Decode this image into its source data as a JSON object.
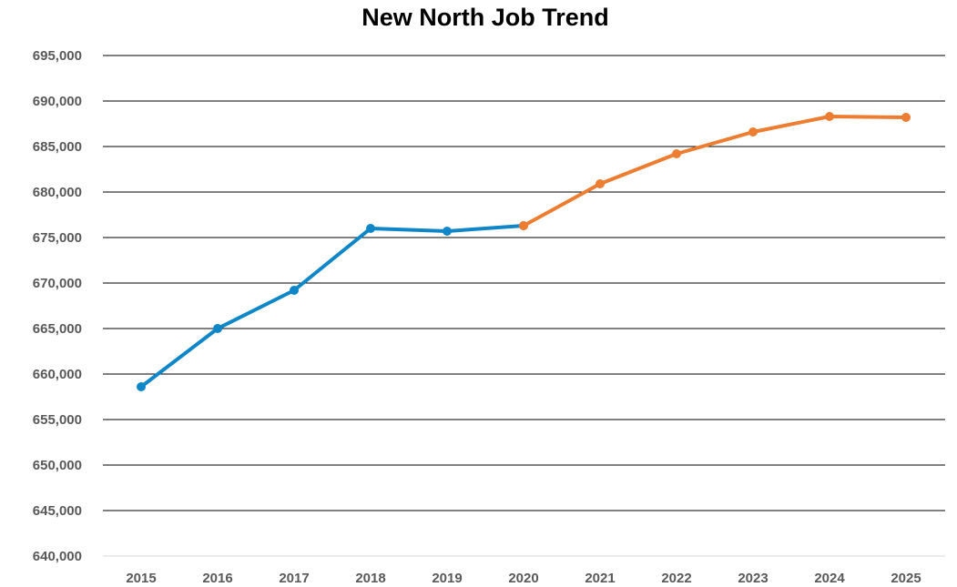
{
  "chart_data": {
    "type": "line",
    "title": "New North Job Trend",
    "xlabel": "",
    "ylabel": "",
    "categories": [
      "2015",
      "2016",
      "2017",
      "2018",
      "2019",
      "2020",
      "2021",
      "2022",
      "2023",
      "2024",
      "2025"
    ],
    "ylim": [
      640000,
      695000
    ],
    "yticks": [
      640000,
      645000,
      650000,
      655000,
      660000,
      665000,
      670000,
      675000,
      680000,
      685000,
      690000,
      695000
    ],
    "ytick_labels": [
      "640,000",
      "645,000",
      "650,000",
      "655,000",
      "660,000",
      "665,000",
      "670,000",
      "675,000",
      "680,000",
      "685,000",
      "690,000",
      "695,000"
    ],
    "grid": true,
    "legend": "none",
    "series": [
      {
        "color": "#0E86C8",
        "points": [
          {
            "x": "2015",
            "y": 658600
          },
          {
            "x": "2016",
            "y": 665000
          },
          {
            "x": "2017",
            "y": 669200
          },
          {
            "x": "2018",
            "y": 676000
          },
          {
            "x": "2019",
            "y": 675700
          },
          {
            "x": "2020",
            "y": 676300
          }
        ]
      },
      {
        "color": "#ED7D31",
        "points": [
          {
            "x": "2020",
            "y": 676300
          },
          {
            "x": "2021",
            "y": 680900
          },
          {
            "x": "2022",
            "y": 684200
          },
          {
            "x": "2023",
            "y": 686600
          },
          {
            "x": "2024",
            "y": 688300
          },
          {
            "x": "2025",
            "y": 688200
          }
        ]
      }
    ]
  }
}
